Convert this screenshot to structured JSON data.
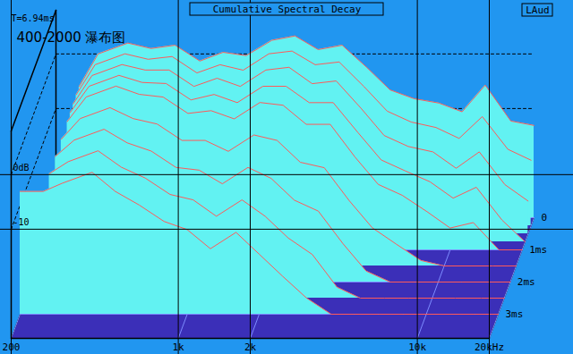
{
  "chart_data": {
    "type": "waterfall",
    "title": "Cumulative Spectral Decay",
    "annotations": [
      "T=6.94ms",
      "400-2000 瀑布图",
      "LAud"
    ],
    "color": "#62f2f2",
    "log": "x",
    "grid": true,
    "xlim": [
      200,
      20000
    ],
    "xticks": [
      200,
      {
        "value": 1000,
        "label": "1k"
      },
      {
        "value": 2000,
        "label": "2k"
      },
      {
        "value": 10000,
        "label": "10k"
      },
      {
        "value": 20000,
        "label": "20kHz"
      }
    ],
    "ylim": [
      -30,
      8
    ],
    "yticks": [
      {
        "value": 0,
        "label": "0dB"
      },
      -10
    ],
    "zlim": [
      0,
      3.75
    ],
    "zticks": [
      0,
      {
        "value": 1,
        "label": "1ms"
      },
      {
        "value": 2,
        "label": "2ms"
      },
      {
        "value": 3,
        "label": "3ms"
      }
    ],
    "x": [
      200,
      250,
      300,
      400,
      500,
      630,
      800,
      1000,
      1250,
      1600,
      2000,
      2500,
      3150,
      4000,
      5000,
      6300,
      8000,
      10000,
      12500,
      16000,
      20000
    ],
    "slices": [
      {
        "time": 0,
        "values": [
          null,
          -6,
          0,
          2,
          1,
          1.6,
          -1.3,
          0.3,
          -0.3,
          2.5,
          3.3,
          0.8,
          1.6,
          -2.5,
          -6.6,
          -8.2,
          -9,
          -10.6,
          -5.7,
          -12.3,
          -13.1
        ]
      },
      {
        "time": 0.25,
        "values": [
          null,
          -6,
          -0.5,
          1.5,
          0.5,
          1,
          -2,
          -0.5,
          -1.5,
          1.5,
          2,
          -0.5,
          0,
          -4.5,
          -9,
          -11,
          -12,
          -14,
          -10,
          -16,
          -18
        ]
      },
      {
        "time": 0.5,
        "values": [
          null,
          -6.2,
          -1,
          1,
          0,
          0,
          -3,
          -1.5,
          -3,
          0,
          0.5,
          -2.5,
          -2,
          -7,
          -12,
          -14,
          -15,
          -18,
          -15,
          -21,
          -24
        ]
      },
      {
        "time": 0.75,
        "values": [
          null,
          -6.3,
          -1.5,
          0.5,
          -0.8,
          -1,
          -4,
          -3,
          -4.5,
          -1.5,
          -1.5,
          -4.5,
          -4.5,
          -10,
          -15,
          -17,
          -19,
          -22,
          -20,
          -26,
          -30
        ]
      },
      {
        "time": 1,
        "values": [
          null,
          -6.5,
          -2,
          0,
          -1.5,
          -2,
          -5,
          -4.5,
          -6,
          -3,
          -3.5,
          -7,
          -7,
          -13,
          -18,
          -20,
          -23,
          -26,
          -25,
          -30,
          -30
        ]
      },
      {
        "time": 1.5,
        "values": [
          null,
          -6.8,
          -3,
          -1,
          -3,
          -4,
          -7,
          -7,
          -9,
          -6,
          -7,
          -11,
          -12,
          -18,
          -23,
          -26,
          -29,
          -30,
          -30,
          -30,
          -30
        ]
      },
      {
        "time": 2,
        "values": [
          null,
          -7,
          -4,
          -2,
          -4.5,
          -6,
          -9,
          -9.5,
          -12,
          -9,
          -11,
          -15,
          -17,
          -23,
          -28,
          -30,
          -30,
          -30,
          -30,
          -30,
          -30
        ]
      },
      {
        "time": 2.5,
        "values": [
          null,
          -7.2,
          -5,
          -3,
          -6,
          -8,
          -11,
          -12,
          -15,
          -12,
          -15,
          -19,
          -22,
          -28,
          -30,
          -30,
          -30,
          -30,
          -30,
          -30,
          -30
        ]
      },
      {
        "time": 3,
        "values": [
          -7.5,
          -7.5,
          -6,
          -4,
          -7.5,
          -10,
          -13,
          -14.5,
          -18,
          -15,
          -19,
          -23,
          -27,
          -30,
          -30,
          -30,
          -30,
          -30,
          -30,
          -30,
          -30
        ]
      }
    ]
  }
}
